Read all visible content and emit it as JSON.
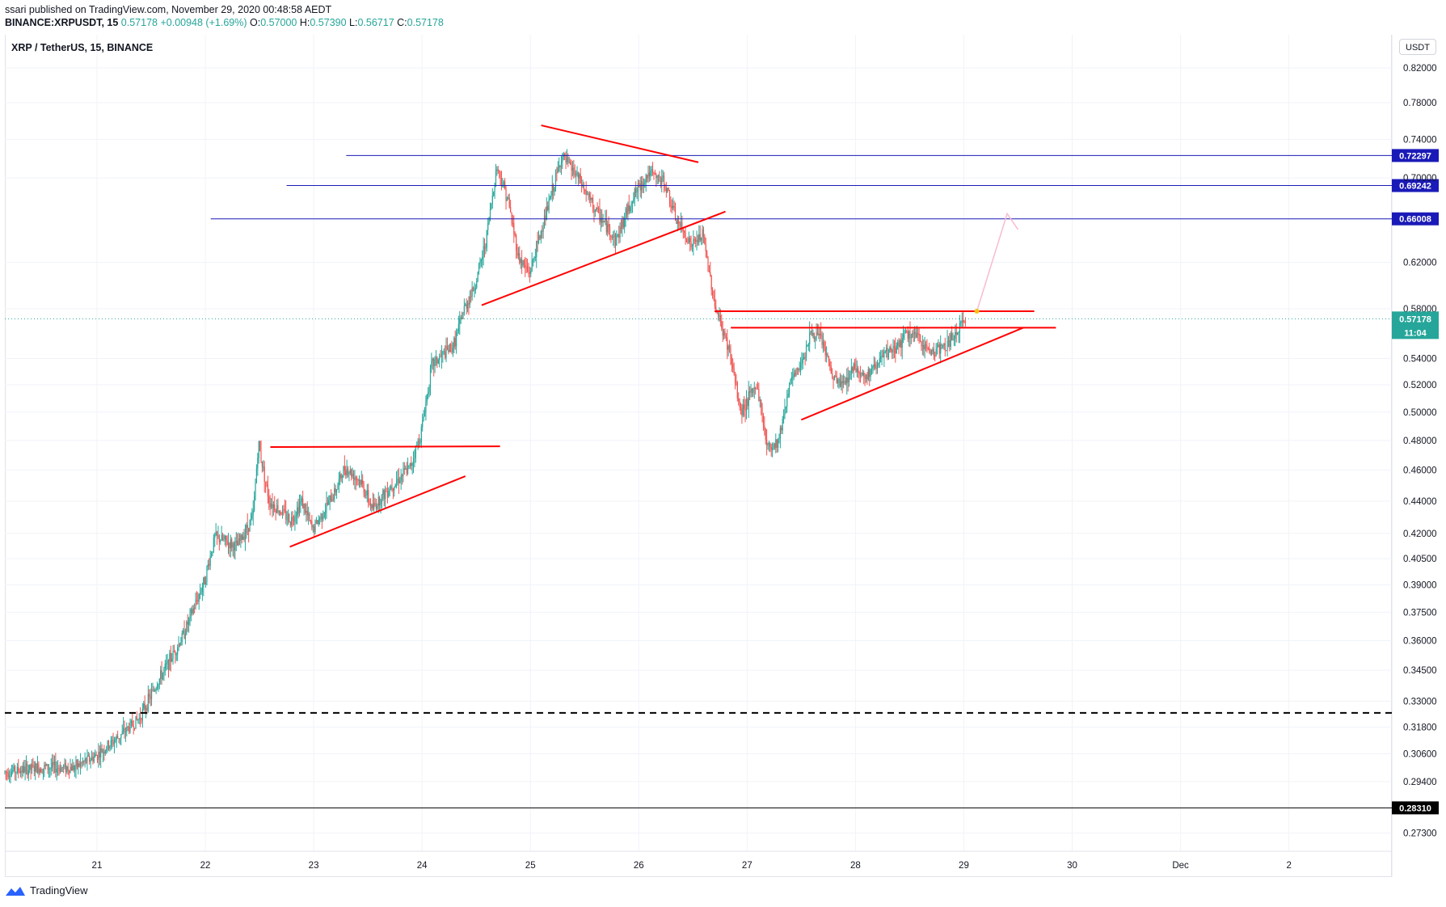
{
  "header": {
    "published": "ssari published on TradingView.com, November 29, 2020 00:48:58 AEDT",
    "symbol": "BINANCE:XRPUSDT, 15",
    "last": "0.57178",
    "change": "+0.00948 (+1.69%)",
    "o_label": "O:",
    "o": "0.57000",
    "h_label": "H:",
    "h": "0.57390",
    "l_label": "L:",
    "l": "0.56717",
    "c_label": "C:",
    "c": "0.57178"
  },
  "legend_title": "XRP / TetherUS, 15, BINANCE",
  "currency_badge": "USDT",
  "brand": "TradingView",
  "colors": {
    "up": "#26a69a",
    "down": "#ef5350",
    "trendline": "#ff0000",
    "level": "#1a1ab8",
    "last_price": "#26a69a",
    "support": "#000000"
  },
  "chart_data": {
    "type": "candlestick",
    "title": "XRP / TetherUS, 15, BINANCE",
    "ylabel": "USDT",
    "y_scale": "log",
    "ylim": [
      0.266,
      0.86
    ],
    "grid": true,
    "x_ticks": [
      {
        "label": "21",
        "day": 21
      },
      {
        "label": "22",
        "day": 22
      },
      {
        "label": "23",
        "day": 23
      },
      {
        "label": "24",
        "day": 24
      },
      {
        "label": "25",
        "day": 25
      },
      {
        "label": "26",
        "day": 26
      },
      {
        "label": "27",
        "day": 27
      },
      {
        "label": "28",
        "day": 28
      },
      {
        "label": "29",
        "day": 29
      },
      {
        "label": "30",
        "day": 30
      },
      {
        "label": "Dec",
        "day": 31
      },
      {
        "label": "2",
        "day": 32
      }
    ],
    "xlim": [
      20.15,
      32.95
    ],
    "y_ticks": [
      "0.82000",
      "0.78000",
      "0.74000",
      "0.70000",
      "0.62000",
      "0.58000",
      "0.54000",
      "0.52000",
      "0.50000",
      "0.48000",
      "0.46000",
      "0.44000",
      "0.42000",
      "0.40500",
      "0.39000",
      "0.37500",
      "0.36000",
      "0.34500",
      "0.33000",
      "0.31800",
      "0.30600",
      "0.29400",
      "0.27300"
    ],
    "price_path": [
      [
        20.15,
        0.298
      ],
      [
        20.5,
        0.3
      ],
      [
        20.8,
        0.3
      ],
      [
        21.0,
        0.305
      ],
      [
        21.2,
        0.313
      ],
      [
        21.4,
        0.322
      ],
      [
        21.6,
        0.342
      ],
      [
        21.8,
        0.362
      ],
      [
        22.0,
        0.392
      ],
      [
        22.1,
        0.418
      ],
      [
        22.3,
        0.412
      ],
      [
        22.45,
        0.43
      ],
      [
        22.5,
        0.478
      ],
      [
        22.6,
        0.44
      ],
      [
        22.8,
        0.428
      ],
      [
        22.9,
        0.44
      ],
      [
        23.0,
        0.422
      ],
      [
        23.2,
        0.445
      ],
      [
        23.3,
        0.462
      ],
      [
        23.45,
        0.452
      ],
      [
        23.55,
        0.435
      ],
      [
        23.7,
        0.448
      ],
      [
        23.9,
        0.462
      ],
      [
        24.0,
        0.485
      ],
      [
        24.1,
        0.535
      ],
      [
        24.3,
        0.55
      ],
      [
        24.4,
        0.58
      ],
      [
        24.5,
        0.6
      ],
      [
        24.6,
        0.64
      ],
      [
        24.7,
        0.712
      ],
      [
        24.8,
        0.68
      ],
      [
        24.9,
        0.625
      ],
      [
        25.0,
        0.61
      ],
      [
        25.2,
        0.682
      ],
      [
        25.3,
        0.722
      ],
      [
        25.45,
        0.7
      ],
      [
        25.6,
        0.67
      ],
      [
        25.8,
        0.64
      ],
      [
        25.95,
        0.68
      ],
      [
        26.1,
        0.705
      ],
      [
        26.25,
        0.695
      ],
      [
        26.35,
        0.66
      ],
      [
        26.5,
        0.635
      ],
      [
        26.6,
        0.645
      ],
      [
        26.72,
        0.58
      ],
      [
        26.85,
        0.545
      ],
      [
        26.95,
        0.5
      ],
      [
        27.1,
        0.52
      ],
      [
        27.2,
        0.475
      ],
      [
        27.3,
        0.48
      ],
      [
        27.4,
        0.52
      ],
      [
        27.5,
        0.535
      ],
      [
        27.6,
        0.56
      ],
      [
        27.7,
        0.555
      ],
      [
        27.8,
        0.525
      ],
      [
        27.9,
        0.52
      ],
      [
        28.0,
        0.535
      ],
      [
        28.1,
        0.525
      ],
      [
        28.25,
        0.54
      ],
      [
        28.4,
        0.55
      ],
      [
        28.5,
        0.56
      ],
      [
        28.6,
        0.555
      ],
      [
        28.7,
        0.545
      ],
      [
        28.85,
        0.55
      ],
      [
        29.0,
        0.567
      ],
      [
        29.02,
        0.5718
      ]
    ],
    "horizontal_levels": [
      {
        "value": 0.72297,
        "label": "0.72297",
        "x_start": 23.3,
        "style": "solid",
        "color": "#1a1ab8"
      },
      {
        "value": 0.69242,
        "label": "0.69242",
        "x_start": 22.75,
        "style": "solid",
        "color": "#1a1ab8"
      },
      {
        "value": 0.66008,
        "label": "0.66008",
        "x_start": 22.05,
        "style": "solid",
        "color": "#1a1ab8"
      },
      {
        "value": 0.2831,
        "label": "0.28310",
        "x_start": 20.15,
        "style": "solid",
        "color": "#000000"
      },
      {
        "value": 0.3245,
        "label": "",
        "x_start": 20.15,
        "x_end": 32.95,
        "style": "dashed",
        "color": "#000000"
      }
    ],
    "last_price": {
      "value": 0.57178,
      "label": "0.57178",
      "countdown": "11:04"
    },
    "trendlines": [
      {
        "p1": [
          22.6,
          0.4755
        ],
        "p2": [
          24.72,
          0.476
        ]
      },
      {
        "p1": [
          22.78,
          0.412
        ],
        "p2": [
          24.4,
          0.456
        ]
      },
      {
        "p1": [
          24.55,
          0.583
        ],
        "p2": [
          26.8,
          0.667
        ]
      },
      {
        "p1": [
          25.1,
          0.755
        ],
        "p2": [
          26.55,
          0.716
        ]
      },
      {
        "p1": [
          26.7,
          0.578
        ],
        "p2": [
          29.65,
          0.578
        ]
      },
      {
        "p1": [
          26.85,
          0.5645
        ],
        "p2": [
          29.85,
          0.5645
        ]
      },
      {
        "p1": [
          27.5,
          0.4945
        ],
        "p2": [
          29.55,
          0.5645
        ]
      }
    ],
    "projection": {
      "p1": [
        29.12,
        0.578
      ],
      "p2": [
        29.4,
        0.665
      ],
      "p3": [
        29.5,
        0.65
      ]
    }
  }
}
